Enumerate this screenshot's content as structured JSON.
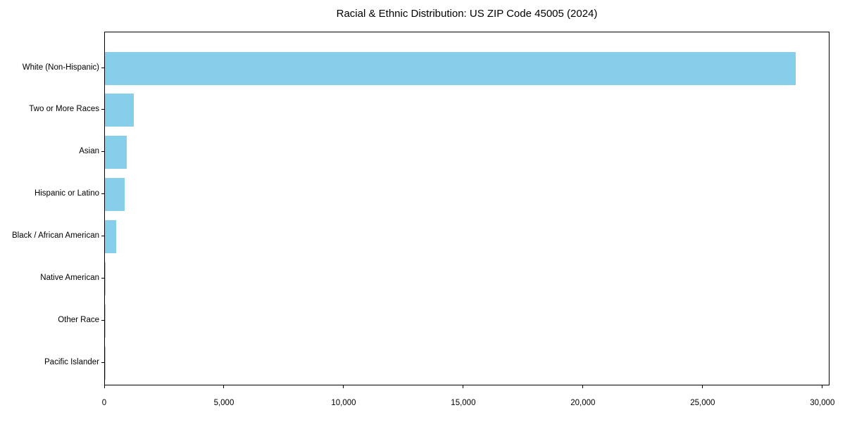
{
  "chart_data": {
    "type": "bar",
    "orientation": "horizontal",
    "title": "Racial & Ethnic Distribution: US ZIP Code 45005 (2024)",
    "categories": [
      "White (Non-Hispanic)",
      "Two or More Races",
      "Asian",
      "Hispanic or Latino",
      "Black / African American",
      "Native American",
      "Other Race",
      "Pacific Islander"
    ],
    "values": [
      28850,
      1220,
      910,
      820,
      460,
      40,
      10,
      4
    ],
    "xlabel": "",
    "ylabel": "",
    "xlim": [
      0,
      30300
    ],
    "x_ticks": [
      0,
      5000,
      10000,
      15000,
      20000,
      25000,
      30000
    ],
    "x_tick_labels": [
      "0",
      "5,000",
      "10,000",
      "15,000",
      "20,000",
      "25,000",
      "30,000"
    ],
    "bar_color": "#87CEEB",
    "axis_color": "#000000",
    "background_color": "#ffffff",
    "grid": false,
    "legend": null
  }
}
